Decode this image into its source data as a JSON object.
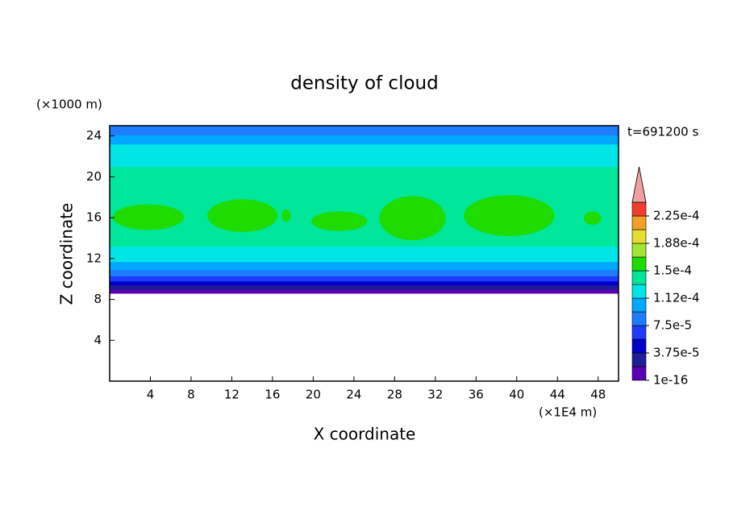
{
  "chart_data": {
    "type": "contour",
    "title": "density of cloud",
    "x_label": "X coordinate",
    "y_label": "Z coordinate",
    "x_unit": "(×1E4 m)",
    "y_unit": "(×1000 m)",
    "time_label": "t=691200 s",
    "xlim": [
      0,
      50
    ],
    "ylim": [
      0,
      25
    ],
    "xticks": [
      4,
      8,
      12,
      16,
      20,
      24,
      28,
      32,
      36,
      40,
      44,
      48
    ],
    "yticks": [
      4,
      8,
      12,
      16,
      20,
      24
    ],
    "levels": [
      1e-16,
      1.875e-05,
      3.75e-05,
      5.625e-05,
      7.5e-05,
      9.375e-05,
      0.0001125,
      0.00013125,
      0.00015,
      0.00016875,
      0.0001875,
      0.00020625,
      0.000225
    ],
    "colors": [
      "#5a00b4",
      "#1e1e96",
      "#0000c8",
      "#1e3cff",
      "#1e7cff",
      "#00a8ff",
      "#00e6e6",
      "#00e69a",
      "#1edc00",
      "#a0e632",
      "#e6dc32",
      "#f0a028",
      "#f03c2d"
    ],
    "over_color": "#f0a0a0",
    "colorbar_ticks": [
      {
        "value": 1e-16,
        "label": "1e-16"
      },
      {
        "value": 3.75e-05,
        "label": "3.75e-5"
      },
      {
        "value": 7.5e-05,
        "label": "7.5e-5"
      },
      {
        "value": 0.0001125,
        "label": "1.12e-4"
      },
      {
        "value": 0.00015,
        "label": "1.5e-4"
      },
      {
        "value": 0.0001875,
        "label": "1.88e-4"
      },
      {
        "value": 0.000225,
        "label": "2.25e-4"
      }
    ],
    "layers": [
      {
        "z": [
          8.6,
          9.0
        ],
        "value": 1e-05
      },
      {
        "z": [
          9.0,
          9.4
        ],
        "value": 2.5e-05
      },
      {
        "z": [
          9.4,
          9.8
        ],
        "value": 4.5e-05
      },
      {
        "z": [
          9.8,
          10.3
        ],
        "value": 6.5e-05
      },
      {
        "z": [
          10.3,
          10.9
        ],
        "value": 8e-05
      },
      {
        "z": [
          10.9,
          11.7
        ],
        "value": 0.0001
      },
      {
        "z": [
          11.7,
          13.2
        ],
        "value": 0.00012
      },
      {
        "z": [
          13.2,
          21
        ],
        "value": 0.00014
      },
      {
        "z": [
          21,
          23.2
        ],
        "value": 0.00012
      },
      {
        "z": [
          23.2,
          24.1
        ],
        "value": 0.0001
      },
      {
        "z": [
          24.1,
          25
        ],
        "value": 8e-05
      }
    ],
    "regions": [
      {
        "x": [
          0.3,
          7.3
        ],
        "z": [
          14.8,
          17.3
        ],
        "value": 0.00016
      },
      {
        "x": [
          9.6,
          16.5
        ],
        "z": [
          14.6,
          17.8
        ],
        "value": 0.00016
      },
      {
        "x": [
          16.9,
          17.8
        ],
        "z": [
          15.6,
          16.8
        ],
        "value": 0.00016
      },
      {
        "x": [
          19.8,
          25.3
        ],
        "z": [
          14.7,
          16.6
        ],
        "value": 0.00016
      },
      {
        "x": [
          26.5,
          33
        ],
        "z": [
          13.8,
          18.1
        ],
        "value": 0.00016
      },
      {
        "x": [
          34.8,
          43.7
        ],
        "z": [
          14.2,
          18.2
        ],
        "value": 0.00016
      },
      {
        "x": [
          46.6,
          48.3
        ],
        "z": [
          15.3,
          16.6
        ],
        "value": 0.00016
      }
    ]
  }
}
